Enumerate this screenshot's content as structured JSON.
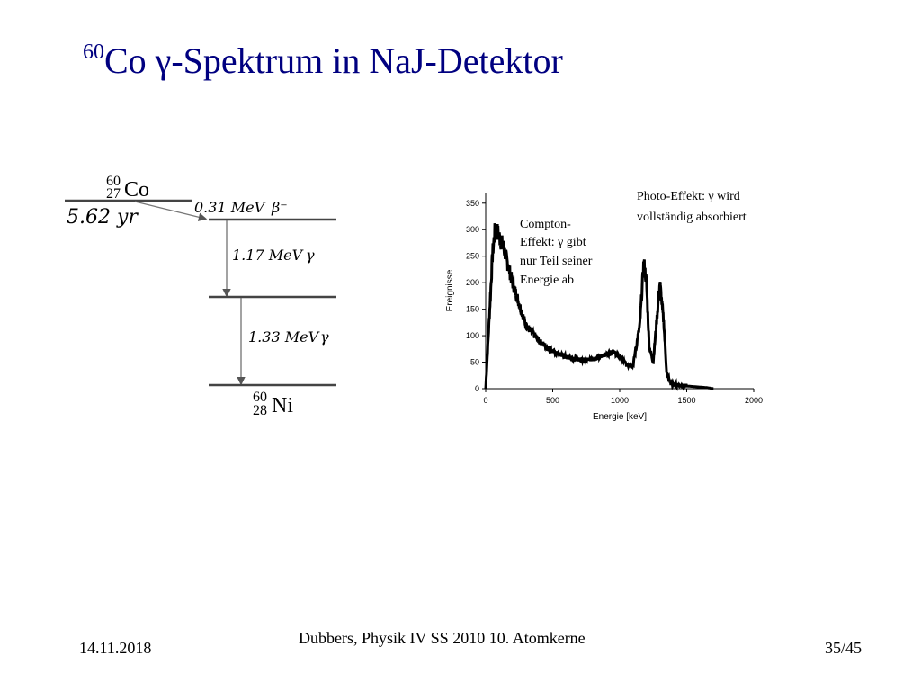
{
  "slide": {
    "title_sup": "60",
    "title_main": "Co γ-Spektrum in NaJ-Detektor",
    "footer_date": "14.11.2018",
    "footer_center": "Dubbers, Physik IV SS 2010 10. Atomkerne",
    "footer_page": "35/45"
  },
  "decay_scheme": {
    "parent_mass": "60",
    "parent_z": "27",
    "parent_symbol": "Co",
    "halflife": "5.62 yr",
    "beta_energy": "0.31 MeV",
    "beta_label": "β⁻",
    "gamma1_energy": "1.17 MeV",
    "gamma1_label": "γ",
    "gamma2_energy": "1.33 MeV",
    "gamma2_label": "γ",
    "daughter_mass": "60",
    "daughter_z": "28",
    "daughter_symbol": "Ni"
  },
  "annotations": {
    "compton_1": "Compton-",
    "compton_2": "Effekt: γ gibt",
    "compton_3": "nur Teil seiner",
    "compton_4": "Energie ab",
    "photo_1": "Photo-Effekt: γ wird",
    "photo_2": "vollständig absorbiert"
  },
  "chart_data": {
    "type": "line",
    "xlabel": "Energie [keV]",
    "ylabel": "Ereignisse",
    "xlim": [
      0,
      2000
    ],
    "ylim": [
      0,
      370
    ],
    "xticks": [
      "0",
      "500",
      "1000",
      "1500",
      "2000"
    ],
    "yticks": [
      "0",
      "50",
      "100",
      "150",
      "200",
      "250",
      "300",
      "350"
    ],
    "x": [
      0,
      30,
      50,
      70,
      90,
      110,
      130,
      150,
      200,
      250,
      300,
      400,
      500,
      600,
      700,
      800,
      900,
      950,
      1000,
      1050,
      1100,
      1150,
      1180,
      1200,
      1220,
      1250,
      1280,
      1300,
      1330,
      1350,
      1380,
      1400,
      1450,
      1500,
      1550,
      1600,
      1650,
      1700
    ],
    "values": [
      0,
      150,
      250,
      300,
      295,
      280,
      270,
      250,
      200,
      160,
      120,
      90,
      70,
      60,
      55,
      55,
      65,
      70,
      60,
      45,
      45,
      120,
      240,
      200,
      80,
      50,
      140,
      200,
      120,
      30,
      10,
      8,
      6,
      5,
      4,
      3,
      2,
      0
    ],
    "grid": false,
    "legend": "none"
  },
  "colors": {
    "title": "#000080",
    "text": "#000000",
    "background": "#ffffff"
  }
}
